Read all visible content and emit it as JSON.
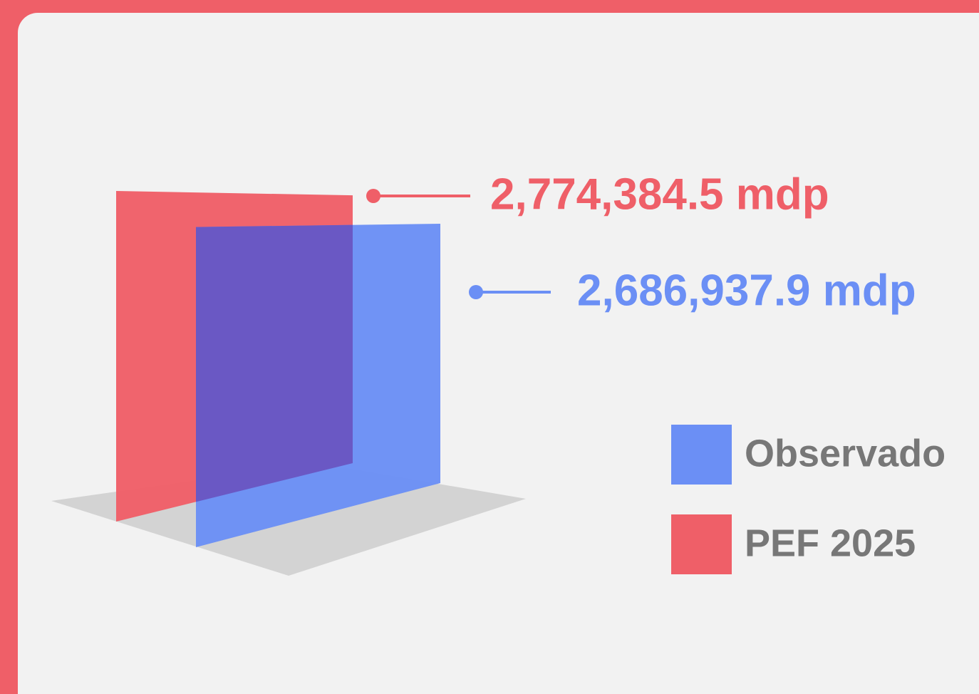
{
  "chart_data": {
    "type": "panel",
    "series": [
      {
        "name": "Observado",
        "color": "#6b8ff5",
        "values": [
          2686937.9
        ],
        "value_labels": [
          "2,686,937.9 mdp"
        ]
      },
      {
        "name": "PEF 2025",
        "color": "#ef5f68",
        "values": [
          2774384.5
        ],
        "value_labels": [
          "2,774,384.5 mdp"
        ]
      }
    ]
  }
}
